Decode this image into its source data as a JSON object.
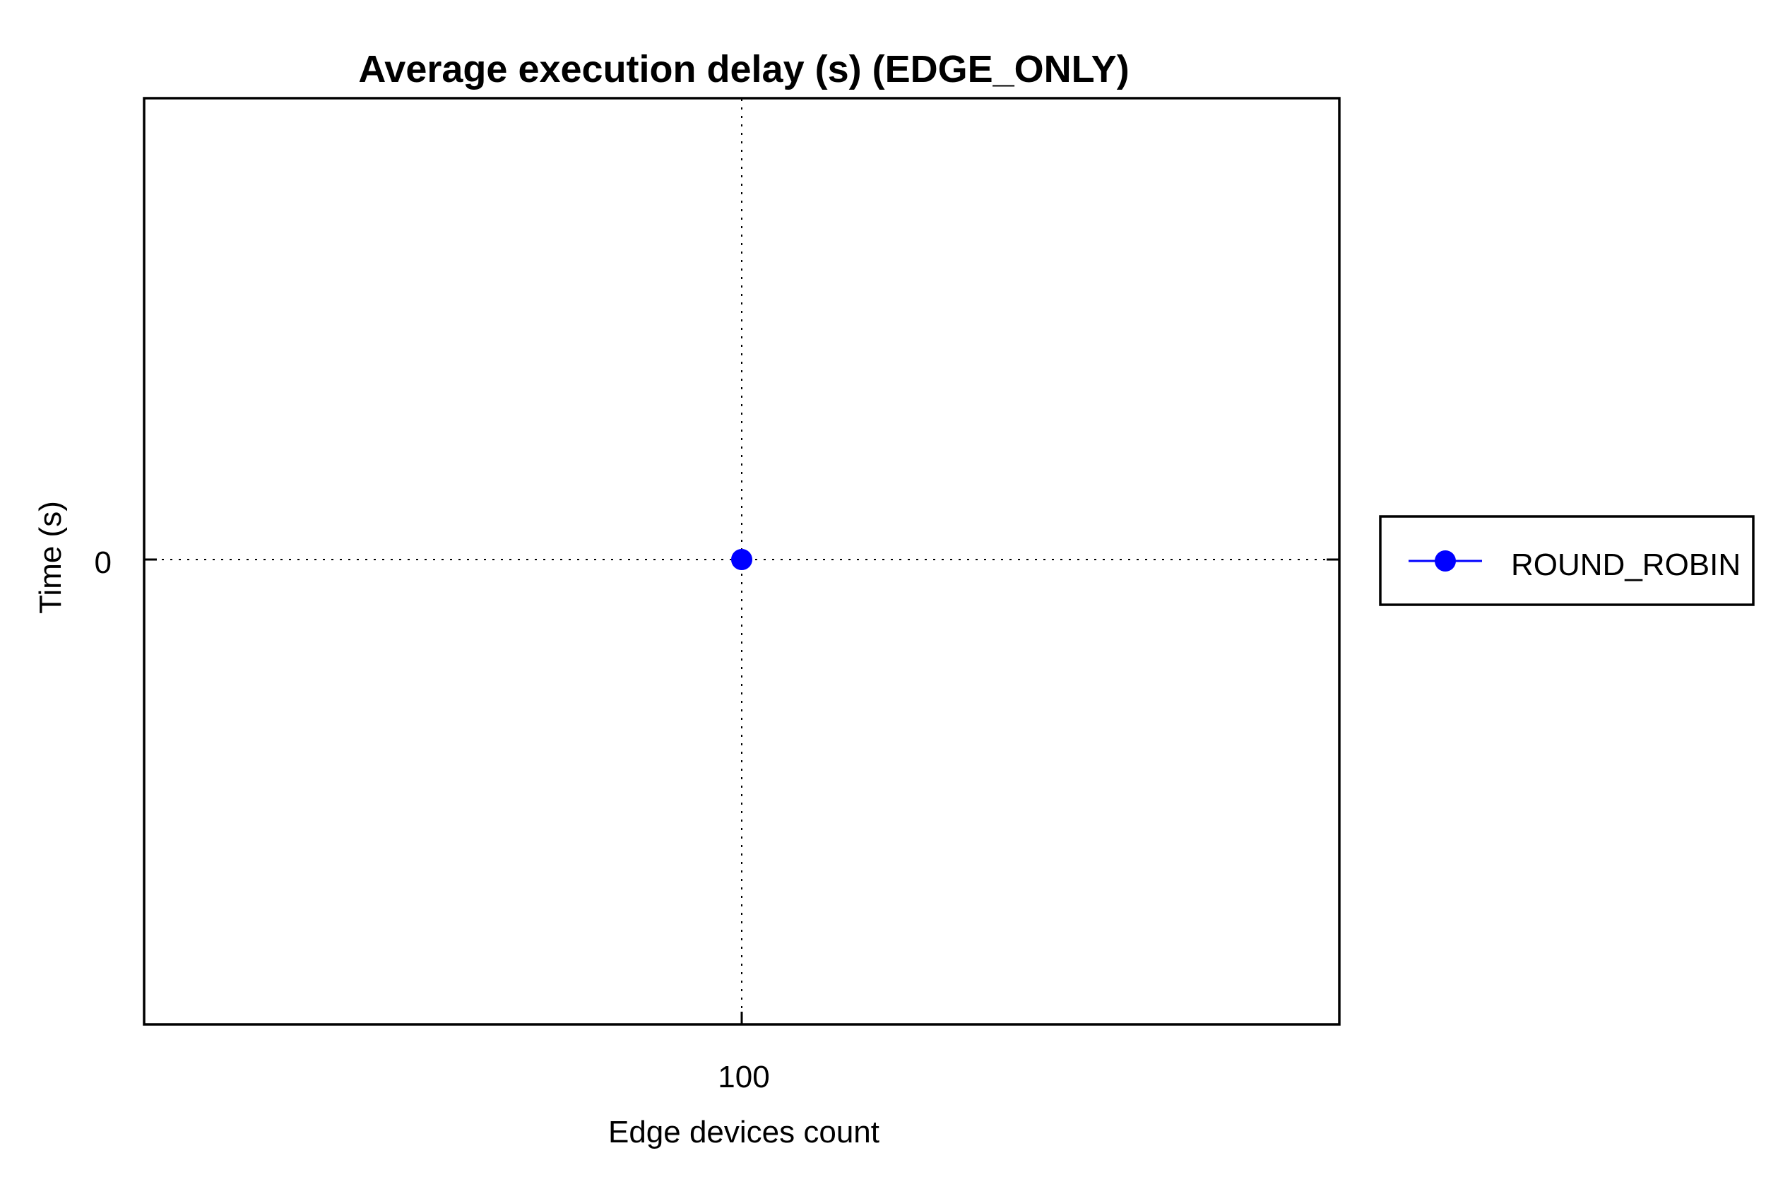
{
  "chart_data": {
    "type": "line",
    "title": "Average execution delay (s) (EDGE_ONLY)",
    "xlabel": "Edge devices count",
    "ylabel": "Time (s)",
    "x_ticks": [
      "100"
    ],
    "y_ticks": [
      "0"
    ],
    "grid": true,
    "legend_position": "right",
    "series": [
      {
        "name": "ROUND_ROBIN",
        "color": "#0000ff",
        "marker": "circle",
        "x": [
          100
        ],
        "y": [
          0
        ]
      }
    ]
  }
}
